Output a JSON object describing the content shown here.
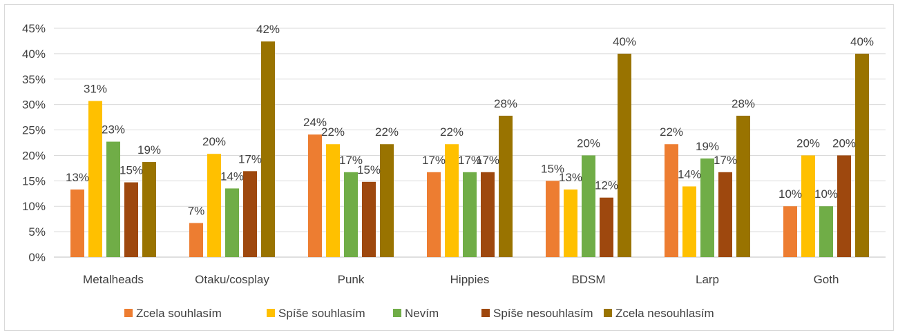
{
  "chart_data": {
    "type": "bar",
    "categories": [
      "Metalheads",
      "Otaku/cosplay",
      "Punk",
      "Hippies",
      "BDSM",
      "Larp",
      "Goth"
    ],
    "series": [
      {
        "name": "Zcela souhlasím",
        "color": "#ED7D31",
        "values": [
          13.3,
          6.7,
          24.1,
          16.7,
          15.0,
          22.2,
          10.0
        ],
        "labels": [
          "13%",
          "7%",
          "24%",
          "17%",
          "15%",
          "22%",
          "10%"
        ]
      },
      {
        "name": "Spíše souhlasím",
        "color": "#FFC000",
        "values": [
          30.7,
          20.3,
          22.2,
          22.2,
          13.3,
          13.9,
          20.0
        ],
        "labels": [
          "31%",
          "20%",
          "22%",
          "22%",
          "13%",
          "14%",
          "20%"
        ]
      },
      {
        "name": "Nevím",
        "color": "#70AD47",
        "values": [
          22.7,
          13.5,
          16.7,
          16.7,
          20.0,
          19.4,
          10.0
        ],
        "labels": [
          "23%",
          "14%",
          "17%",
          "17%",
          "20%",
          "19%",
          "10%"
        ]
      },
      {
        "name": "Spíše nesouhlasím",
        "color": "#9E480E",
        "values": [
          14.7,
          16.9,
          14.8,
          16.7,
          11.7,
          16.7,
          20.0
        ],
        "labels": [
          "15%",
          "17%",
          "15%",
          "17%",
          "12%",
          "17%",
          "20%"
        ]
      },
      {
        "name": "Zcela nesouhlasím",
        "color": "#997300",
        "values": [
          18.7,
          42.4,
          22.2,
          27.8,
          40.0,
          27.8,
          40.0
        ],
        "labels": [
          "19%",
          "42%",
          "22%",
          "28%",
          "40%",
          "28%",
          "40%"
        ]
      }
    ],
    "yticks": [
      "0%",
      "5%",
      "10%",
      "15%",
      "20%",
      "25%",
      "30%",
      "35%",
      "40%",
      "45%"
    ],
    "ylim": [
      0,
      45
    ],
    "grid": true,
    "legend": "bottom",
    "title": "",
    "xlabel": "",
    "ylabel": ""
  }
}
